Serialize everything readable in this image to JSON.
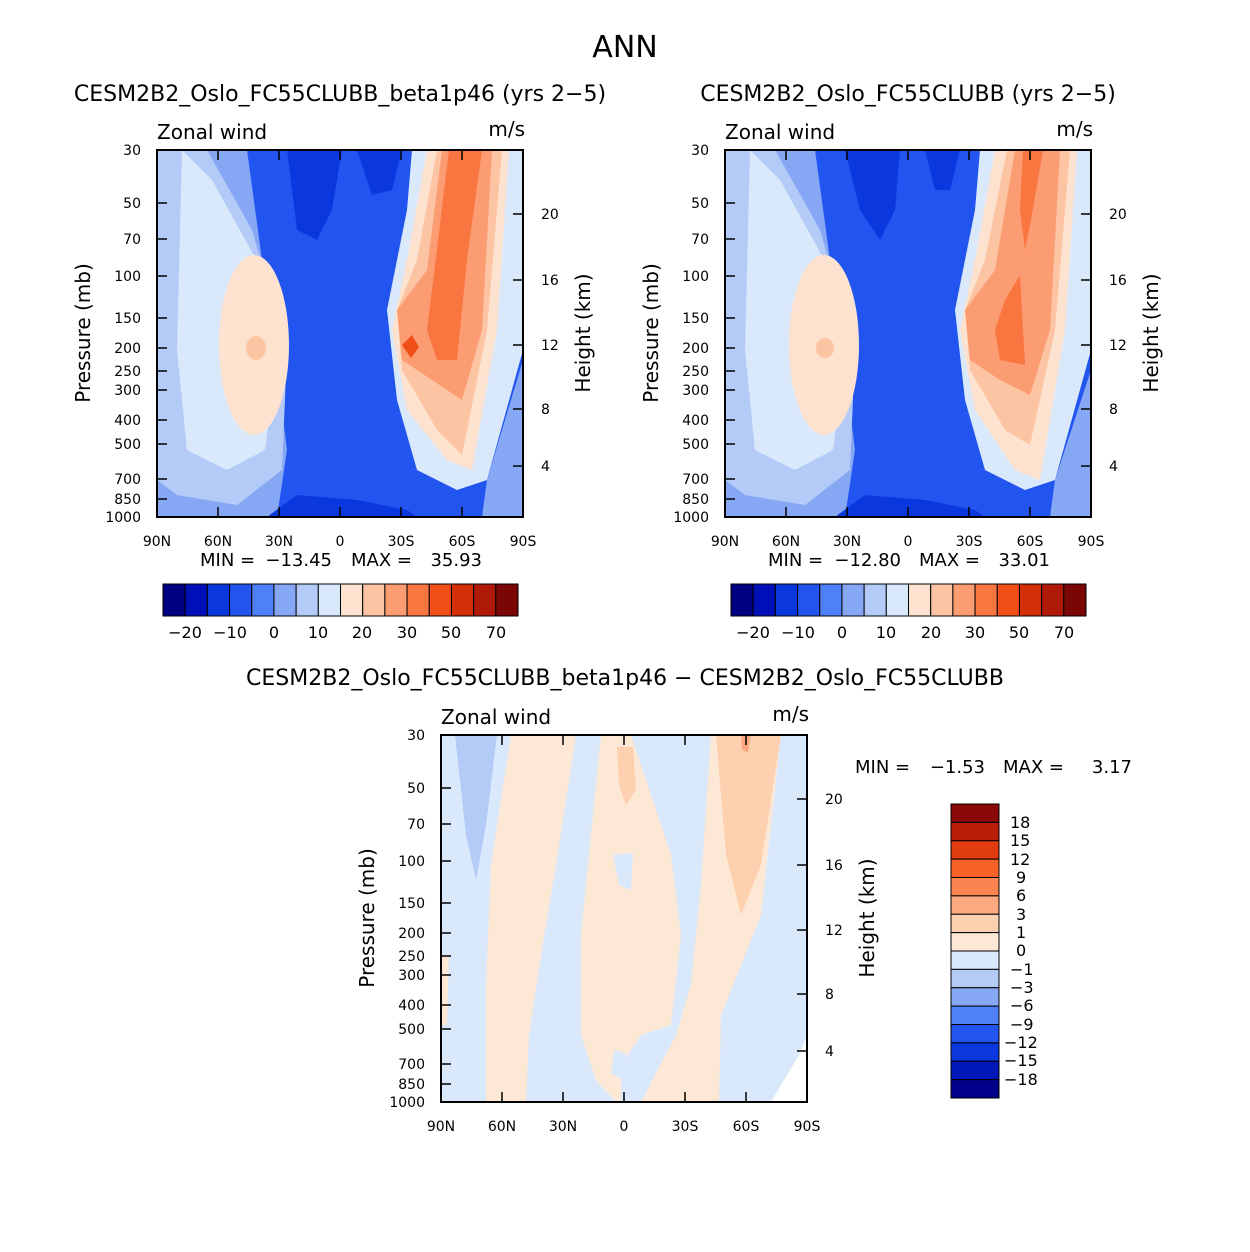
{
  "figure_title": "ANN",
  "chart_data": [
    {
      "type": "heatmap",
      "title": "CESM2B2_Oslo_FC55CLUBB_beta1p46 (yrs 2−5)",
      "variable": "Zonal wind",
      "units": "m/s",
      "ylabel": "Pressure (mb)",
      "ylabel_right": "Height (km)",
      "x_ticks": [
        "90N",
        "60N",
        "30N",
        "0",
        "30S",
        "60S",
        "90S"
      ],
      "y_ticks": [
        "30",
        "50",
        "70",
        "100",
        "150",
        "200",
        "250",
        "300",
        "400",
        "500",
        "700",
        "850",
        "1000"
      ],
      "y_ticks_right": [
        "20",
        "16",
        "12",
        "8",
        "4"
      ],
      "xlim": [
        90,
        -90
      ],
      "ylim": [
        1000,
        30
      ],
      "min_label": "MIN =",
      "min_value": "−13.45",
      "max_label": "MAX =",
      "max_value": "35.93",
      "colorbar_labels": [
        "−20",
        "−10",
        "0",
        "10",
        "20",
        "30",
        "50",
        "70"
      ]
    },
    {
      "type": "heatmap",
      "title": "CESM2B2_Oslo_FC55CLUBB (yrs 2−5)",
      "variable": "Zonal wind",
      "units": "m/s",
      "ylabel": "Pressure (mb)",
      "ylabel_right": "Height (km)",
      "x_ticks": [
        "90N",
        "60N",
        "30N",
        "0",
        "30S",
        "60S",
        "90S"
      ],
      "y_ticks": [
        "30",
        "50",
        "70",
        "100",
        "150",
        "200",
        "250",
        "300",
        "400",
        "500",
        "700",
        "850",
        "1000"
      ],
      "y_ticks_right": [
        "20",
        "16",
        "12",
        "8",
        "4"
      ],
      "xlim": [
        90,
        -90
      ],
      "ylim": [
        1000,
        30
      ],
      "min_label": "MIN =",
      "min_value": "−12.80",
      "max_label": "MAX =",
      "max_value": "33.01",
      "colorbar_labels": [
        "−20",
        "−10",
        "0",
        "10",
        "20",
        "30",
        "50",
        "70"
      ]
    },
    {
      "type": "heatmap",
      "title": "CESM2B2_Oslo_FC55CLUBB_beta1p46 − CESM2B2_Oslo_FC55CLUBB",
      "variable": "Zonal wind",
      "units": "m/s",
      "ylabel": "Pressure (mb)",
      "ylabel_right": "Height (km)",
      "x_ticks": [
        "90N",
        "60N",
        "30N",
        "0",
        "30S",
        "60S",
        "90S"
      ],
      "y_ticks": [
        "30",
        "50",
        "70",
        "100",
        "150",
        "200",
        "250",
        "300",
        "400",
        "500",
        "700",
        "850",
        "1000"
      ],
      "y_ticks_right": [
        "20",
        "16",
        "12",
        "8",
        "4"
      ],
      "xlim": [
        90,
        -90
      ],
      "ylim": [
        1000,
        30
      ],
      "min_label": "MIN =",
      "min_value": "−1.53",
      "max_label": "MAX =",
      "max_value": "3.17",
      "colorbar_labels": [
        "18",
        "15",
        "12",
        "9",
        "6",
        "3",
        "1",
        "0",
        "−1",
        "−3",
        "−6",
        "−9",
        "−12",
        "−15",
        "−18"
      ]
    }
  ],
  "colors": {
    "abs_scale": [
      "#000080",
      "#0010b8",
      "#0a38de",
      "#2255f0",
      "#4f80f8",
      "#86a8f4",
      "#b4cbf8",
      "#d9e8fa",
      "#fde2cf",
      "#fdc4a3",
      "#fc9c72",
      "#f97640",
      "#f04f18",
      "#d43008",
      "#b01a08",
      "#7a0606"
    ],
    "diff_scale": [
      "#00008a",
      "#0018b8",
      "#0a38de",
      "#2255f0",
      "#4f80f8",
      "#86a8f4",
      "#b4cbf8",
      "#d9e8fa",
      "#fde8d6",
      "#fdd0b0",
      "#fca880",
      "#fb8550",
      "#f66228",
      "#e03c10",
      "#b81e08",
      "#8a0808"
    ]
  }
}
